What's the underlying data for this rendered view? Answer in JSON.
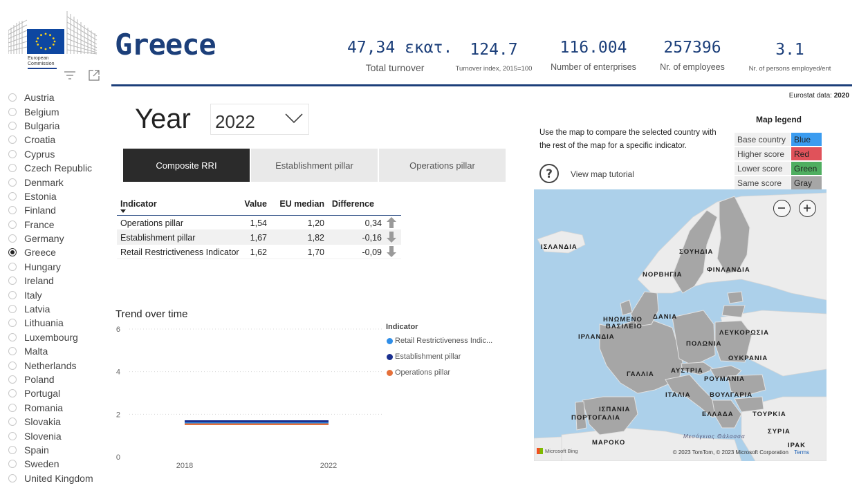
{
  "logo": {
    "line1": "European",
    "line2": "Commission"
  },
  "toolbar": {
    "filter_icon": "filter-lines-icon",
    "focus_icon": "focus-mode-icon"
  },
  "countries": [
    {
      "label": "Austria",
      "selected": false
    },
    {
      "label": "Belgium",
      "selected": false
    },
    {
      "label": "Bulgaria",
      "selected": false
    },
    {
      "label": "Croatia",
      "selected": false
    },
    {
      "label": "Cyprus",
      "selected": false
    },
    {
      "label": "Czech Republic",
      "selected": false
    },
    {
      "label": "Denmark",
      "selected": false
    },
    {
      "label": "Estonia",
      "selected": false
    },
    {
      "label": "Finland",
      "selected": false
    },
    {
      "label": "France",
      "selected": false
    },
    {
      "label": "Germany",
      "selected": false
    },
    {
      "label": "Greece",
      "selected": true
    },
    {
      "label": "Hungary",
      "selected": false
    },
    {
      "label": "Ireland",
      "selected": false
    },
    {
      "label": "Italy",
      "selected": false
    },
    {
      "label": "Latvia",
      "selected": false
    },
    {
      "label": "Lithuania",
      "selected": false
    },
    {
      "label": "Luxembourg",
      "selected": false
    },
    {
      "label": "Malta",
      "selected": false
    },
    {
      "label": "Netherlands",
      "selected": false
    },
    {
      "label": "Poland",
      "selected": false
    },
    {
      "label": "Portugal",
      "selected": false
    },
    {
      "label": "Romania",
      "selected": false
    },
    {
      "label": "Slovakia",
      "selected": false
    },
    {
      "label": "Slovenia",
      "selected": false
    },
    {
      "label": "Spain",
      "selected": false
    },
    {
      "label": "Sweden",
      "selected": false
    },
    {
      "label": "United Kingdom",
      "selected": false
    }
  ],
  "header": {
    "country": "Greece",
    "kpis": [
      {
        "value": "47,34 εκατ.",
        "label": "Total turnover"
      },
      {
        "value": "124.7",
        "label": "Turnover index, 2015=100"
      },
      {
        "value": "116.004",
        "label": "Number of enterprises"
      },
      {
        "value": "257396",
        "label": "Nr. of employees"
      },
      {
        "value": "3.1",
        "label": "Nr. of persons employed/ent"
      }
    ],
    "eurostat_label": "Eurostat data:",
    "eurostat_year": "2020"
  },
  "year": {
    "label": "Year",
    "value": "2022"
  },
  "tabs": [
    {
      "label": "Composite RRI",
      "active": true
    },
    {
      "label": "Establishment pillar",
      "active": false
    },
    {
      "label": "Operations pillar",
      "active": false
    }
  ],
  "table": {
    "headers": {
      "indicator": "Indicator",
      "value": "Value",
      "median": "EU median",
      "difference": "Difference"
    },
    "rows": [
      {
        "indicator": "Operations pillar",
        "value": "1,54",
        "median": "1,20",
        "difference": "0,34",
        "trend": "up"
      },
      {
        "indicator": "Establishment pillar",
        "value": "1,67",
        "median": "1,82",
        "difference": "-0,16",
        "trend": "down"
      },
      {
        "indicator": "Retail Restrictiveness Indicator",
        "value": "1,62",
        "median": "1,70",
        "difference": "-0,09",
        "trend": "down"
      }
    ]
  },
  "trend": {
    "title": "Trend over time",
    "legend_title": "Indicator"
  },
  "chart_data": {
    "type": "line",
    "title": "Trend over time",
    "x": [
      "2018",
      "2022"
    ],
    "ylim": [
      0,
      6
    ],
    "yticks": [
      "0",
      "2",
      "4",
      "6"
    ],
    "grid": true,
    "legend": "right",
    "legend_title": "Indicator",
    "series": [
      {
        "name": "Retail Restrictiveness Indic...",
        "color": "#2f8ee8",
        "values": [
          1.62,
          1.62
        ]
      },
      {
        "name": "Establishment pillar",
        "color": "#1a2f8f",
        "values": [
          1.67,
          1.67
        ]
      },
      {
        "name": "Operations pillar",
        "color": "#e5703a",
        "values": [
          1.54,
          1.54
        ]
      }
    ]
  },
  "map_panel": {
    "instructions": "Use the map to compare the selected country with the rest of the map for a specific indicator.",
    "tutorial": "View map tutorial",
    "legend_title": "Map legend",
    "legend": [
      {
        "label": "Base country",
        "swatch": "Blue",
        "color": "#3b9cf0"
      },
      {
        "label": "Higher score",
        "swatch": "Red",
        "color": "#e0525a"
      },
      {
        "label": "Lower score",
        "swatch": "Green",
        "color": "#4fae60"
      },
      {
        "label": "Same score",
        "swatch": "Gray",
        "color": "#a6a6a6"
      }
    ],
    "labels": [
      "ΙΣΛΑΝΔΙΑ",
      "ΣΟΥΗΔΙΑ",
      "ΦΙΝΛΑΝΔΙΑ",
      "ΝΟΡΒΗΓΙΑ",
      "ΗΝΩΜΕΝΟ",
      "ΒΑΣΙΛΕΙΟ",
      "ΔΑΝΙΑ",
      "ΙΡΛΑΝΔΙΑ",
      "ΛΕΥΚΟΡΩΣΙΑ",
      "ΠΟΛΩΝΙΑ",
      "ΟΥΚΡΑΝΙΑ",
      "ΑΥΣΤΡΙΑ",
      "ΓΑΛΛΙΑ",
      "ΡΟΥΜΑΝΙΑ",
      "ΙΤΑΛΙΑ",
      "ΒΟΥΛΓΑΡΙΑ",
      "ΙΣΠΑΝΙΑ",
      "ΠΟΡΤΟΓΑΛΙΑ",
      "ΕΛΛΑΔΑ",
      "ΤΟΥΡΚΙΑ",
      "Μεσόγειος Θάλασσα",
      "ΣΥΡΙΑ",
      "ΜΑΡΟΚΟ",
      "ΙΡΑΚ"
    ],
    "attribution": "© 2023 TomTom, © 2023 Microsoft Corporation",
    "terms": "Terms",
    "brand": "Microsoft Bing"
  }
}
